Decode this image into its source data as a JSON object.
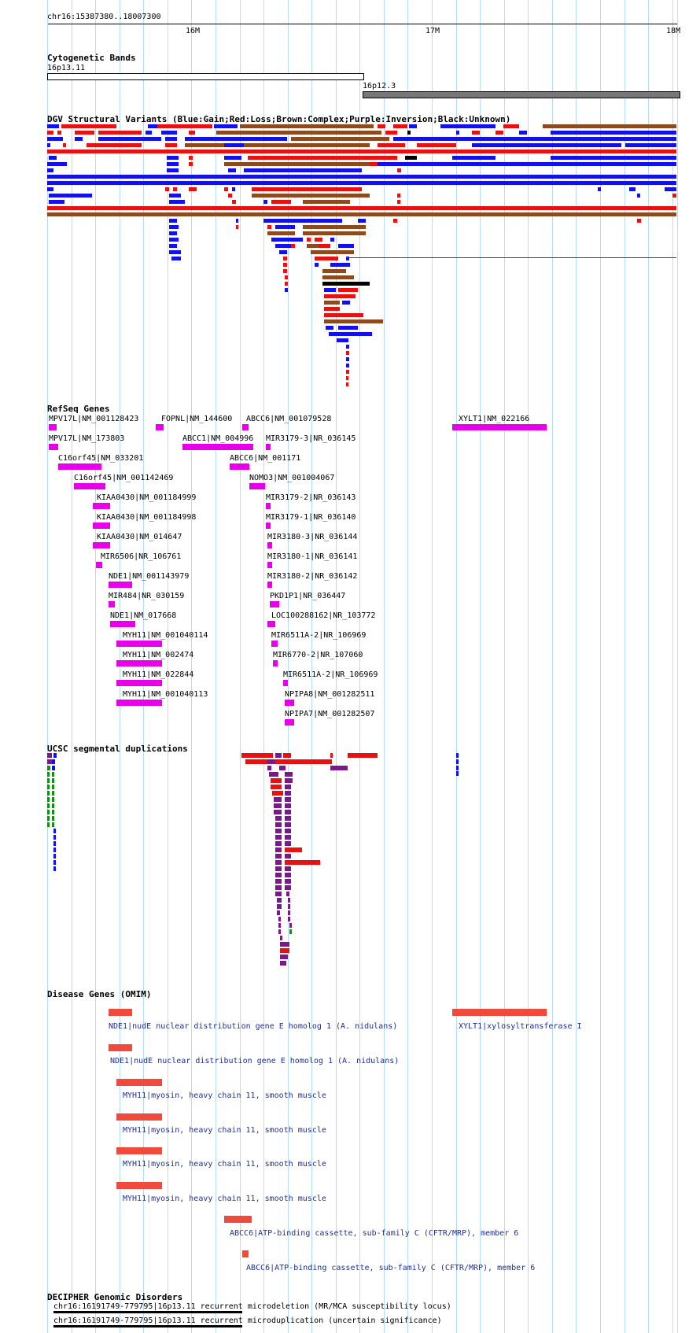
{
  "ruler": {
    "range_label": "chr16:15387380..18007300",
    "ticks": [
      "16M",
      "17M",
      "18M"
    ]
  },
  "cytobands": {
    "title": "Cytogenetic Bands",
    "bands": [
      {
        "name": "16p13.11",
        "color": "#ffffff"
      },
      {
        "name": "16p12.3",
        "color": "#777777"
      }
    ]
  },
  "dgv": {
    "title": "DGV Structural Variants (Blue:Gain;Red:Loss;Brown:Complex;Purple:Inversion;Black:Unknown)",
    "colors": {
      "gain": "#1212e6",
      "loss": "#e61212",
      "complex": "#8c4a1e",
      "inversion": "#7a1a8a",
      "unknown": "#000000"
    }
  },
  "refseq": {
    "title": "RefSeq Genes",
    "color": "#e800e8",
    "genes": [
      "MPV17L|NM_001128423",
      "FOPNL|NM_144600",
      "ABCC6|NM_001079528",
      "XYLT1|NM_022166",
      "MPV17L|NM_173803",
      "ABCC1|NM_004996",
      "MIR3179-3|NR_036145",
      "C16orf45|NM_033201",
      "ABCC6|NM_001171",
      "C16orf45|NM_001142469",
      "NOMO3|NM_001004067",
      "KIAA0430|NM_001184999",
      "MIR3179-2|NR_036143",
      "KIAA0430|NM_001184998",
      "MIR3179-1|NR_036140",
      "KIAA0430|NM_014647",
      "MIR3180-3|NR_036144",
      "MIR6506|NR_106761",
      "MIR3180-1|NR_036141",
      "NDE1|NM_001143979",
      "MIR3180-2|NR_036142",
      "MIR484|NR_030159",
      "PKD1P1|NR_036447",
      "NDE1|NM_017668",
      "LOC100288162|NR_103772",
      "MYH11|NM_001040114",
      "MIR6511A-2|NR_106969",
      "MYH11|NM_002474",
      "MIR6770-2|NR_107060",
      "MYH11|NM_022844",
      "MIR6511A-2|NR_106969",
      "MYH11|NM_001040113",
      "NPIPA8|NM_001282511",
      "NPIPA7|NM_001282507"
    ]
  },
  "segdups": {
    "title": "UCSC segmental duplications",
    "colors": {
      "red": "#e61212",
      "purple": "#7a1a8a",
      "green": "#1a8a1a",
      "blue": "#1212e6"
    }
  },
  "omim": {
    "title": "Disease Genes (OMIM)",
    "color": "#f04a3c",
    "entries": [
      "NDE1|nudE nuclear distribution gene E homolog 1 (A. nidulans)",
      "XYLT1|xylosyltransferase I",
      "NDE1|nudE nuclear distribution gene E homolog 1 (A. nidulans)",
      "MYH11|myosin, heavy chain 11, smooth muscle",
      "MYH11|myosin, heavy chain 11, smooth muscle",
      "MYH11|myosin, heavy chain 11, smooth muscle",
      "MYH11|myosin, heavy chain 11, smooth muscle",
      "ABCC6|ATP-binding cassette, sub-family C (CFTR/MRP), member 6",
      "ABCC6|ATP-binding cassette, sub-family C (CFTR/MRP), member 6"
    ]
  },
  "decipher": {
    "title": "DECIPHER Genomic Disorders",
    "entries": [
      {
        "locus": "chr16:16191749-779795|16p13.11 recurrent",
        "desc": "microdeletion (MR/MCA susceptibility locus)"
      },
      {
        "locus": "chr16:16191749-779795|16p13.11 recurrent",
        "desc": "microduplication (uncertain significance)"
      }
    ]
  }
}
